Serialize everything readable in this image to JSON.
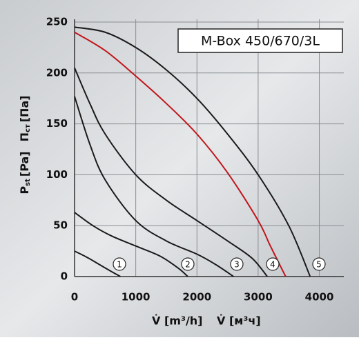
{
  "chart_data": {
    "type": "line",
    "title": "M-Box 450/670/3L",
    "y_label": {
      "p1": "P",
      "s1": "st",
      "u1": "[Pa]",
      "p2": "П",
      "s2": "ст",
      "u2": "[Па]"
    },
    "x_label": [
      "V̇ [m³/h]",
      "V̇ [м³ч]"
    ],
    "xlim": [
      0,
      4400
    ],
    "ylim": [
      0,
      250
    ],
    "xticks": [
      0,
      1000,
      2000,
      3000,
      4000
    ],
    "yticks": [
      0,
      50,
      100,
      150,
      200,
      250
    ],
    "grid": true,
    "series": [
      {
        "color": "#1a1a1a",
        "x": [
          0,
          200,
          400,
          600,
          750
        ],
        "values": [
          25,
          19,
          12,
          5,
          0
        ]
      },
      {
        "color": "#1a1a1a",
        "x": [
          0,
          300,
          600,
          1000,
          1400,
          1700,
          1850
        ],
        "values": [
          63,
          50,
          40,
          30,
          20,
          8,
          0
        ]
      },
      {
        "color": "#1a1a1a",
        "x": [
          0,
          250,
          500,
          1000,
          1500,
          2000,
          2300,
          2600
        ],
        "values": [
          177,
          130,
          95,
          55,
          35,
          22,
          12,
          0
        ]
      },
      {
        "color": "#1a1a1a",
        "x": [
          0,
          250,
          500,
          1000,
          1500,
          2000,
          2500,
          2900,
          3150
        ],
        "values": [
          205,
          170,
          140,
          100,
          75,
          55,
          35,
          18,
          0
        ]
      },
      {
        "color": "#c0161c",
        "x": [
          0,
          500,
          1000,
          1500,
          2000,
          2500,
          3000,
          3200,
          3450
        ],
        "values": [
          240,
          222,
          197,
          170,
          140,
          102,
          55,
          30,
          0
        ]
      },
      {
        "color": "#1a1a1a",
        "x": [
          0,
          500,
          1000,
          1500,
          2000,
          2500,
          3000,
          3500,
          3850
        ],
        "values": [
          245,
          240,
          225,
          203,
          175,
          140,
          100,
          50,
          0
        ]
      }
    ],
    "annotations": [
      "1",
      "2",
      "3",
      "4",
      "5"
    ]
  }
}
